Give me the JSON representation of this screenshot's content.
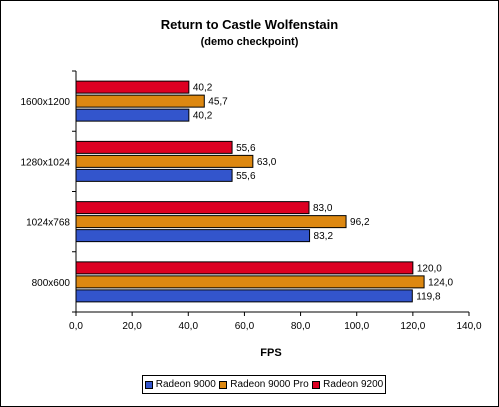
{
  "chart_data": {
    "type": "bar",
    "orientation": "horizontal",
    "title": "Return to Castle Wolfenstain",
    "subtitle": "(demo checkpoint)",
    "xlabel": "FPS",
    "ylabel": "",
    "categories": [
      "1600x1200",
      "1280x1024",
      "1024x768",
      "800x600"
    ],
    "series": [
      {
        "name": "Radeon 9000",
        "color": "#3355cc",
        "values": [
          40.2,
          55.6,
          83.2,
          119.8
        ],
        "labels": [
          "40,2",
          "55,6",
          "83,2",
          "119,8"
        ]
      },
      {
        "name": "Radeon 9000 Pro",
        "color": "#dd8811",
        "values": [
          45.7,
          63.0,
          96.2,
          124.0
        ],
        "labels": [
          "45,7",
          "63,0",
          "96,2",
          "124,0"
        ]
      },
      {
        "name": "Radeon 9200",
        "color": "#dd0022",
        "values": [
          40.2,
          55.6,
          83.0,
          120.0
        ],
        "labels": [
          "40,2",
          "55,6",
          "83,0",
          "120,0"
        ]
      }
    ],
    "xlim": [
      0,
      140
    ],
    "xticks": [
      "0,0",
      "20,0",
      "40,0",
      "60,0",
      "80,0",
      "100,0",
      "120,0",
      "140,0"
    ],
    "grid": false,
    "legend_position": "bottom"
  }
}
